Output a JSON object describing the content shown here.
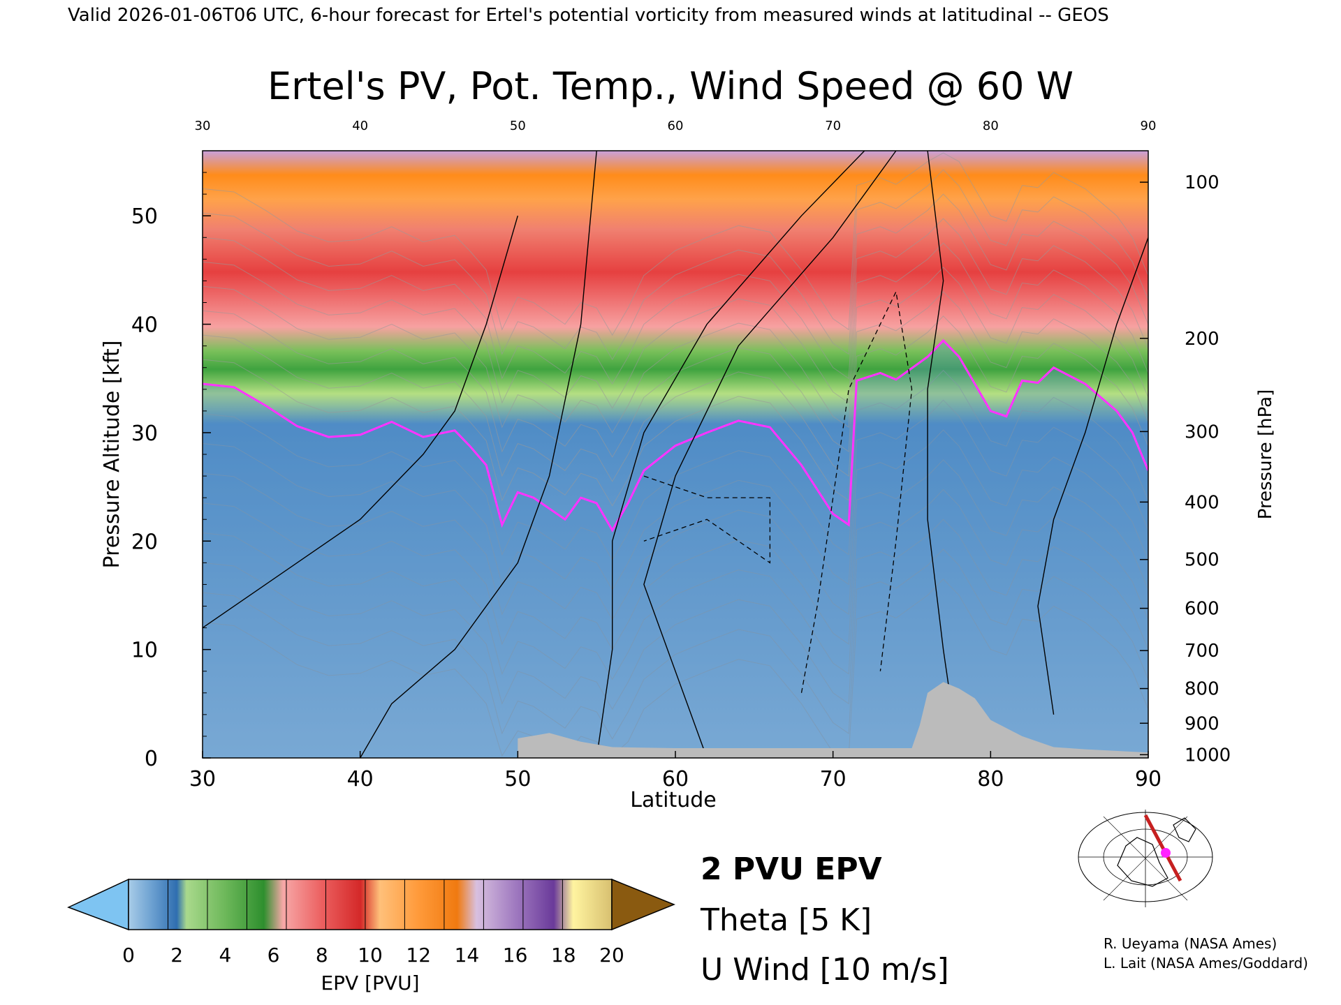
{
  "header": {
    "banner": "Valid 2026-01-06T06 UTC, 6-hour forecast for Ertel's potential vorticity from measured winds at latitudinal -- GEOS"
  },
  "chart_data": {
    "type": "heatmap",
    "title": "Ertel's PV, Pot. Temp., Wind Speed @ 60 W",
    "xlabel": "Latitude",
    "ylabel": "Pressure Altitude [kft]",
    "y2label": "Pressure [hPa]",
    "xlim": [
      30,
      90
    ],
    "ylim": [
      0,
      56
    ],
    "x_ticks": [
      30,
      40,
      50,
      60,
      70,
      80,
      90
    ],
    "x_tick_labels": [
      "30",
      "40",
      "50",
      "60",
      "70",
      "80",
      "90"
    ],
    "y_ticks": [
      0,
      10,
      20,
      30,
      40,
      50
    ],
    "y_tick_labels": [
      "0",
      "10",
      "20",
      "30",
      "40",
      "50"
    ],
    "pressure_ticks": [
      {
        "label": "100",
        "kft": 53.1
      },
      {
        "label": "200",
        "kft": 38.7
      },
      {
        "label": "300",
        "kft": 30.1
      },
      {
        "label": "400",
        "kft": 23.6
      },
      {
        "label": "500",
        "kft": 18.3
      },
      {
        "label": "600",
        "kft": 13.8
      },
      {
        "label": "700",
        "kft": 9.9
      },
      {
        "label": "800",
        "kft": 6.4
      },
      {
        "label": "900",
        "kft": 3.2
      },
      {
        "label": "1000",
        "kft": 0.3
      }
    ],
    "tropopause_2pvu": [
      {
        "lat": 30,
        "kft": 34.5
      },
      {
        "lat": 32,
        "kft": 34.2
      },
      {
        "lat": 34,
        "kft": 32.5
      },
      {
        "lat": 36,
        "kft": 30.6
      },
      {
        "lat": 38,
        "kft": 29.6
      },
      {
        "lat": 40,
        "kft": 29.8
      },
      {
        "lat": 42,
        "kft": 31.0
      },
      {
        "lat": 44,
        "kft": 29.6
      },
      {
        "lat": 46,
        "kft": 30.2
      },
      {
        "lat": 47,
        "kft": 28.7
      },
      {
        "lat": 48,
        "kft": 27.0
      },
      {
        "lat": 49,
        "kft": 21.5
      },
      {
        "lat": 50,
        "kft": 24.5
      },
      {
        "lat": 51,
        "kft": 24.0
      },
      {
        "lat": 53,
        "kft": 22.0
      },
      {
        "lat": 54,
        "kft": 24.0
      },
      {
        "lat": 55,
        "kft": 23.5
      },
      {
        "lat": 56,
        "kft": 21.0
      },
      {
        "lat": 57,
        "kft": 23.5
      },
      {
        "lat": 58,
        "kft": 26.5
      },
      {
        "lat": 60,
        "kft": 28.8
      },
      {
        "lat": 62,
        "kft": 30.0
      },
      {
        "lat": 64,
        "kft": 31.1
      },
      {
        "lat": 66,
        "kft": 30.5
      },
      {
        "lat": 68,
        "kft": 27.0
      },
      {
        "lat": 70,
        "kft": 22.5
      },
      {
        "lat": 71,
        "kft": 21.5
      },
      {
        "lat": 71.5,
        "kft": 34.8
      },
      {
        "lat": 73,
        "kft": 35.5
      },
      {
        "lat": 74,
        "kft": 34.9
      },
      {
        "lat": 76,
        "kft": 37.0
      },
      {
        "lat": 77,
        "kft": 38.5
      },
      {
        "lat": 78,
        "kft": 37.0
      },
      {
        "lat": 80,
        "kft": 32.0
      },
      {
        "lat": 81,
        "kft": 31.5
      },
      {
        "lat": 82,
        "kft": 34.8
      },
      {
        "lat": 83,
        "kft": 34.6
      },
      {
        "lat": 84,
        "kft": 36.0
      },
      {
        "lat": 86,
        "kft": 34.5
      },
      {
        "lat": 88,
        "kft": 32.0
      },
      {
        "lat": 89,
        "kft": 30.0
      },
      {
        "lat": 90,
        "kft": 26.5
      }
    ],
    "terrain": [
      {
        "lat": 50,
        "kft": 1.8
      },
      {
        "lat": 52,
        "kft": 2.3
      },
      {
        "lat": 54,
        "kft": 1.5
      },
      {
        "lat": 56,
        "kft": 1.0
      },
      {
        "lat": 60,
        "kft": 0.9
      },
      {
        "lat": 65,
        "kft": 0.9
      },
      {
        "lat": 70,
        "kft": 0.9
      },
      {
        "lat": 75,
        "kft": 0.9
      },
      {
        "lat": 75.5,
        "kft": 3.0
      },
      {
        "lat": 76,
        "kft": 6.0
      },
      {
        "lat": 77,
        "kft": 7.0
      },
      {
        "lat": 78,
        "kft": 6.4
      },
      {
        "lat": 79,
        "kft": 5.5
      },
      {
        "lat": 80,
        "kft": 3.5
      },
      {
        "lat": 82,
        "kft": 2.0
      },
      {
        "lat": 84,
        "kft": 1.0
      },
      {
        "lat": 86,
        "kft": 0.8
      },
      {
        "lat": 90,
        "kft": 0.5
      }
    ],
    "colorbar": {
      "label": "EPV [PVU]",
      "tick_labels": [
        "0",
        "2",
        "4",
        "6",
        "8",
        "10",
        "12",
        "14",
        "16",
        "18",
        "20"
      ],
      "min": 0,
      "max": 20
    },
    "legend": {
      "pv": "2 PVU EPV",
      "theta": "Theta [5 K]",
      "wind": "U Wind [10 m/s]"
    },
    "colors": {
      "tropopause": "#ff33ff",
      "terrain": "#bbbbbb",
      "theta": "#999999",
      "wind": "#000000"
    }
  },
  "credits": {
    "line1": "R. Ueyama (NASA Ames)",
    "line2": "L. Lait (NASA Ames/Goddard)"
  },
  "inset_map": {
    "icon": "globe-icon"
  }
}
